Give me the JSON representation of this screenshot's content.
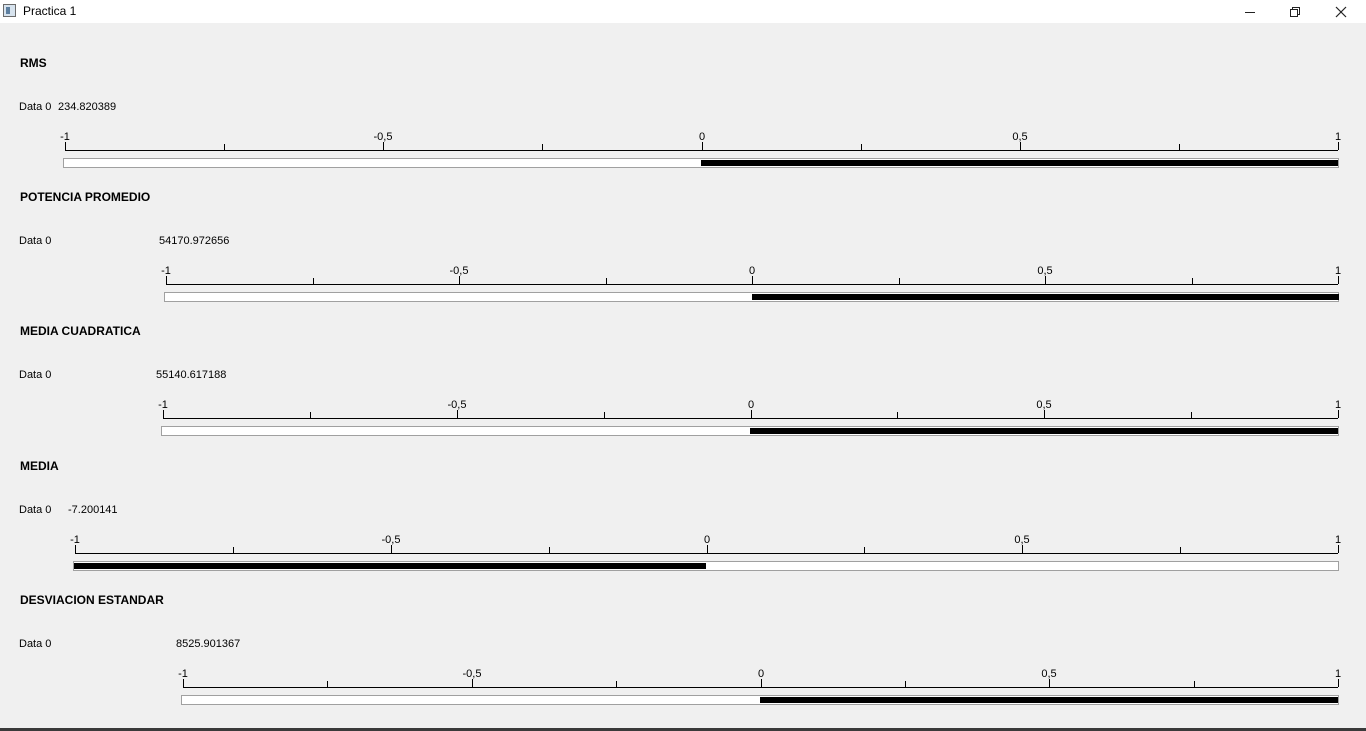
{
  "window": {
    "title": "Practica 1",
    "icon": "app-window-icon",
    "controls": [
      "minimize-icon",
      "restore-icon",
      "close-icon"
    ]
  },
  "tick_labels": [
    "-1",
    "-0,5",
    "0",
    "0,5",
    "1"
  ],
  "meters": [
    {
      "title": "RMS",
      "data_label": "Data 0",
      "value_text": "234.820389",
      "fill_from": 0,
      "fill_to": 1
    },
    {
      "title": "POTENCIA PROMEDIO",
      "data_label": "Data 0",
      "value_text": "54170.972656",
      "fill_from": 0,
      "fill_to": 1
    },
    {
      "title": "MEDIA CUADRATICA",
      "data_label": "Data 0",
      "value_text": "55140.617188",
      "fill_from": 0,
      "fill_to": 1
    },
    {
      "title": "MEDIA",
      "data_label": "Data 0",
      "value_text": "-7.200141",
      "fill_from": -1,
      "fill_to": 0
    },
    {
      "title": "DESVIACION ESTANDAR",
      "data_label": "Data 0",
      "value_text": "8525.901367",
      "fill_from": 0,
      "fill_to": 1
    }
  ],
  "colors": {
    "fill": "#000000",
    "track": "#ffffff",
    "background": "#f0f0f0"
  }
}
